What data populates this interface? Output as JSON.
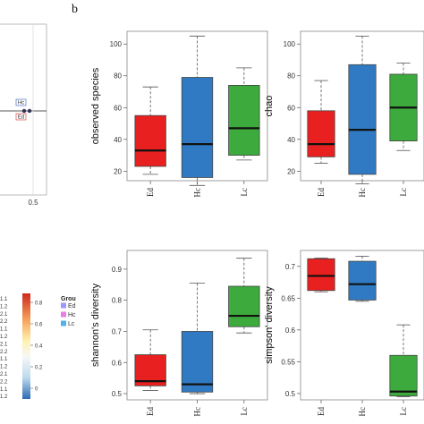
{
  "panel_letter": "b",
  "left_panel": {
    "x_tick": "0.5",
    "markers": [
      "Hc",
      "Ed"
    ],
    "colorbar_ticks": [
      "0.8",
      "0.6",
      "0.4",
      "0.2",
      "0"
    ],
    "row_labels": [
      "1.1",
      "1.2",
      "2.1",
      "2.2",
      "1.1",
      "1.2",
      "2.1",
      "2.2",
      "1.1",
      "1.2",
      "2.1",
      "2.2",
      "1.1",
      "1.2"
    ],
    "legend_title": "Grou",
    "legend_items": [
      {
        "label": "Ed",
        "color": "#9999ff"
      },
      {
        "label": "Hc",
        "color": "#e87de8"
      },
      {
        "label": "Lc",
        "color": "#4fb3e8"
      }
    ],
    "colorbar_colors": [
      "#cc2a1f",
      "#f6a25b",
      "#fff2b0",
      "#f7f7f7",
      "#bcd9ec",
      "#2d6bb4"
    ]
  },
  "chart_data": [
    {
      "type": "box",
      "ylabel": "observed species",
      "categories": [
        "Ed",
        "Hc",
        "Lc"
      ],
      "colors": [
        "#e8201f",
        "#2f7ac2",
        "#3caa3c"
      ],
      "ylim": [
        14,
        108
      ],
      "yticks": [
        20,
        40,
        60,
        80,
        100
      ],
      "boxes": [
        {
          "min": 18,
          "q1": 23,
          "median": 33,
          "q3": 55,
          "max": 73
        },
        {
          "min": 11,
          "q1": 16,
          "median": 37,
          "q3": 79,
          "max": 105
        },
        {
          "min": 27,
          "q1": 30,
          "median": 47,
          "q3": 74,
          "max": 85
        }
      ]
    },
    {
      "type": "box",
      "ylabel": "chao",
      "categories": [
        "Ed",
        "Hc",
        "Lc"
      ],
      "colors": [
        "#e8201f",
        "#2f7ac2",
        "#3caa3c"
      ],
      "ylim": [
        14,
        108
      ],
      "yticks": [
        20,
        40,
        60,
        80,
        100
      ],
      "boxes": [
        {
          "min": 25,
          "q1": 29,
          "median": 37,
          "q3": 58,
          "max": 77
        },
        {
          "min": 12,
          "q1": 18,
          "median": 46,
          "q3": 87,
          "max": 105
        },
        {
          "min": 33,
          "q1": 39,
          "median": 60,
          "q3": 81,
          "max": 88
        }
      ]
    },
    {
      "type": "box",
      "ylabel": "shannon's diversity",
      "categories": [
        "Ed",
        "Hc",
        "Lc"
      ],
      "colors": [
        "#e8201f",
        "#2f7ac2",
        "#3caa3c"
      ],
      "ylim": [
        0.48,
        0.96
      ],
      "yticks": [
        0.5,
        0.6,
        0.7,
        0.8,
        0.9
      ],
      "boxes": [
        {
          "min": 0.51,
          "q1": 0.525,
          "median": 0.54,
          "q3": 0.625,
          "max": 0.705
        },
        {
          "min": 0.5,
          "q1": 0.505,
          "median": 0.53,
          "q3": 0.7,
          "max": 0.855
        },
        {
          "min": 0.695,
          "q1": 0.715,
          "median": 0.75,
          "q3": 0.845,
          "max": 0.935
        }
      ]
    },
    {
      "type": "box",
      "ylabel": "simpson' diversity",
      "categories": [
        "Ed",
        "Hc",
        "Lc"
      ],
      "colors": [
        "#e8201f",
        "#2f7ac2",
        "#3caa3c"
      ],
      "ylim": [
        0.49,
        0.725
      ],
      "yticks": [
        0.5,
        0.55,
        0.6,
        0.65,
        0.7
      ],
      "boxes": [
        {
          "min": 0.66,
          "q1": 0.662,
          "median": 0.685,
          "q3": 0.712,
          "max": 0.713
        },
        {
          "min": 0.645,
          "q1": 0.647,
          "median": 0.672,
          "q3": 0.708,
          "max": 0.716
        },
        {
          "min": 0.495,
          "q1": 0.496,
          "median": 0.503,
          "q3": 0.56,
          "max": 0.608
        }
      ]
    }
  ]
}
